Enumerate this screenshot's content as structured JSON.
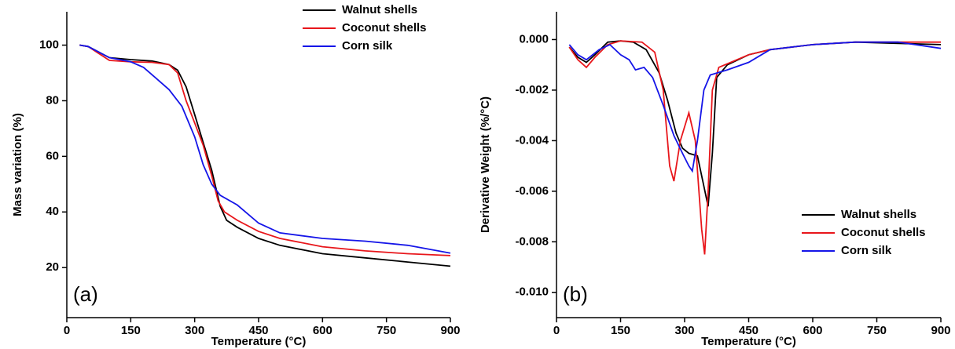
{
  "chart_data": [
    {
      "type": "line",
      "xlabel": "Temperature (°C)",
      "ylabel": "Mass variation (%)",
      "annotation": "(a)",
      "xlim": [
        0,
        900
      ],
      "xticks": [
        0,
        150,
        300,
        450,
        600,
        750,
        900
      ],
      "ylim": [
        2,
        112
      ],
      "yticks": [
        20,
        40,
        60,
        80,
        100
      ],
      "legend": "upper right",
      "series": [
        {
          "name": "Walnut shells",
          "color": "#000000",
          "x": [
            30,
            50,
            75,
            100,
            150,
            200,
            240,
            260,
            280,
            300,
            320,
            340,
            360,
            375,
            400,
            450,
            500,
            600,
            700,
            800,
            900
          ],
          "values": [
            100,
            99.5,
            97.5,
            95.5,
            94.8,
            94.3,
            93,
            91,
            85,
            75,
            65,
            55,
            42,
            37,
            34.5,
            30.5,
            28,
            25,
            23.5,
            22,
            20.5
          ]
        },
        {
          "name": "Coconut shells",
          "color": "#e8161b",
          "x": [
            30,
            50,
            75,
            100,
            150,
            200,
            240,
            260,
            280,
            300,
            320,
            340,
            355,
            370,
            400,
            450,
            500,
            600,
            700,
            800,
            900
          ],
          "values": [
            100,
            99.5,
            97,
            94.5,
            94,
            93.8,
            93,
            90,
            80,
            72,
            64,
            53,
            44,
            40,
            37,
            33,
            30.5,
            27.5,
            26,
            25,
            24.3
          ]
        },
        {
          "name": "Corn silk",
          "color": "#1515e8",
          "x": [
            30,
            50,
            75,
            100,
            150,
            180,
            210,
            240,
            270,
            300,
            320,
            340,
            360,
            400,
            450,
            500,
            600,
            700,
            800,
            900
          ],
          "values": [
            100,
            99.5,
            97.5,
            95.5,
            94,
            92,
            88,
            84,
            78,
            67,
            57,
            50,
            46,
            42.5,
            36,
            32.5,
            30.5,
            29.5,
            28,
            25.2
          ]
        }
      ]
    },
    {
      "type": "line",
      "xlabel": "Temperature (°C)",
      "ylabel": "Derivative Weight (%/°C)",
      "annotation": "(b)",
      "xlim": [
        0,
        900
      ],
      "xticks": [
        0,
        150,
        300,
        450,
        600,
        750,
        900
      ],
      "ylim": [
        -0.011,
        0.0011
      ],
      "yticks": [
        {
          "value": 0,
          "label": "0.000"
        },
        {
          "value": -0.002,
          "label": "-0.002"
        },
        {
          "value": -0.004,
          "label": "-0.004"
        },
        {
          "value": -0.006,
          "label": "-0.006"
        },
        {
          "value": -0.008,
          "label": "-0.008"
        },
        {
          "value": -0.01,
          "label": "-0.010"
        }
      ],
      "legend": "lower right",
      "series": [
        {
          "name": "Walnut shells",
          "color": "#000000",
          "x": [
            30,
            50,
            70,
            90,
            120,
            150,
            180,
            210,
            240,
            260,
            280,
            295,
            310,
            330,
            345,
            355,
            365,
            375,
            400,
            450,
            500,
            600,
            700,
            800,
            900
          ],
          "values": [
            -0.0003,
            -0.0007,
            -0.0009,
            -0.0006,
            -0.0001,
            -5e-05,
            -0.0001,
            -0.0004,
            -0.0013,
            -0.0024,
            -0.0037,
            -0.0043,
            -0.0045,
            -0.0046,
            -0.0058,
            -0.0066,
            -0.0045,
            -0.0015,
            -0.001,
            -0.0006,
            -0.0004,
            -0.0002,
            -0.0001,
            -0.00015,
            -0.0002
          ]
        },
        {
          "name": "Coconut shells",
          "color": "#e8161b",
          "x": [
            30,
            50,
            70,
            90,
            120,
            150,
            200,
            230,
            250,
            265,
            275,
            290,
            310,
            325,
            340,
            347,
            355,
            365,
            380,
            450,
            500,
            600,
            700,
            800,
            900
          ],
          "values": [
            -0.0003,
            -0.0008,
            -0.0011,
            -0.0007,
            -0.0002,
            -5e-05,
            -0.0001,
            -0.0005,
            -0.002,
            -0.005,
            -0.0056,
            -0.004,
            -0.0029,
            -0.004,
            -0.0075,
            -0.0085,
            -0.006,
            -0.002,
            -0.0011,
            -0.0006,
            -0.0004,
            -0.0002,
            -0.0001,
            -0.0001,
            -0.0001
          ]
        },
        {
          "name": "Corn silk",
          "color": "#1515e8",
          "x": [
            30,
            50,
            70,
            100,
            125,
            150,
            170,
            185,
            205,
            225,
            250,
            275,
            295,
            310,
            318,
            330,
            345,
            360,
            400,
            450,
            500,
            600,
            700,
            800,
            900
          ],
          "values": [
            -0.0002,
            -0.0006,
            -0.0008,
            -0.0004,
            -0.0002,
            -0.0006,
            -0.0008,
            -0.0012,
            -0.0011,
            -0.0015,
            -0.0026,
            -0.0038,
            -0.0045,
            -0.005,
            -0.0052,
            -0.004,
            -0.002,
            -0.0014,
            -0.0012,
            -0.0009,
            -0.0004,
            -0.0002,
            -0.0001,
            -0.0001,
            -0.00035
          ]
        }
      ]
    }
  ]
}
